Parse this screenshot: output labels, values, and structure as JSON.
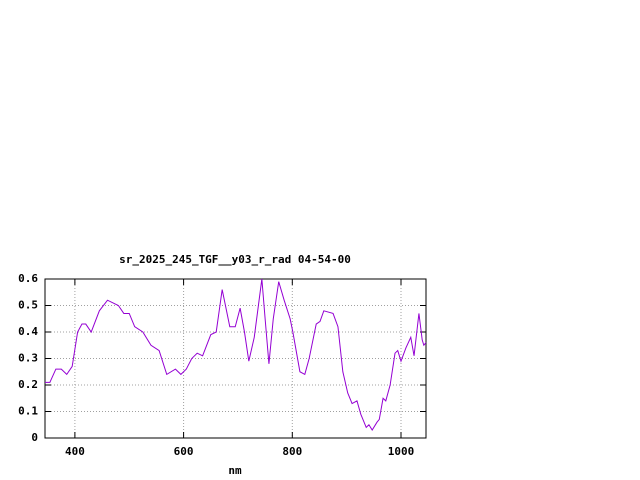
{
  "chart_data": {
    "type": "line",
    "title": "sr_2025_245_TGF__y03_r_rad 04-54-00",
    "x_label": "nm",
    "x": [
      345,
      354,
      365,
      375,
      385,
      395,
      405,
      413,
      420,
      430,
      445,
      460,
      480,
      490,
      500,
      510,
      525,
      540,
      555,
      569,
      585,
      595,
      605,
      615,
      625,
      635,
      650,
      660,
      671,
      677,
      685,
      695,
      704,
      712,
      720,
      730,
      744,
      750,
      757,
      765,
      775,
      785,
      796,
      801,
      814,
      823,
      831,
      844,
      851,
      858,
      875,
      884,
      893,
      902,
      910,
      919,
      926,
      936,
      941,
      947,
      956,
      960,
      967,
      972,
      980,
      989,
      994,
      1000,
      1009,
      1018,
      1024,
      1033,
      1039,
      1042,
      1046
    ],
    "series": [
      {
        "name": "sr_2025_245_TGF__y03_r_rad 04-54-00",
        "color": "#9400d3",
        "values": [
          0.21,
          0.21,
          0.26,
          0.26,
          0.24,
          0.27,
          0.4,
          0.43,
          0.43,
          0.4,
          0.48,
          0.52,
          0.5,
          0.47,
          0.47,
          0.42,
          0.4,
          0.35,
          0.33,
          0.24,
          0.26,
          0.24,
          0.26,
          0.3,
          0.32,
          0.31,
          0.39,
          0.4,
          0.56,
          0.5,
          0.42,
          0.42,
          0.49,
          0.4,
          0.29,
          0.38,
          0.6,
          0.45,
          0.28,
          0.45,
          0.59,
          0.52,
          0.45,
          0.4,
          0.25,
          0.24,
          0.3,
          0.43,
          0.44,
          0.48,
          0.47,
          0.42,
          0.25,
          0.17,
          0.13,
          0.14,
          0.09,
          0.04,
          0.05,
          0.03,
          0.06,
          0.07,
          0.15,
          0.14,
          0.2,
          0.32,
          0.33,
          0.29,
          0.34,
          0.38,
          0.31,
          0.47,
          0.37,
          0.35,
          0.36
        ]
      }
    ],
    "xlim": [
      345,
      1046
    ],
    "xticks": [
      400,
      600,
      800,
      1000
    ],
    "ylim": [
      0,
      0.6
    ],
    "yticks": [
      0,
      0.1,
      0.2,
      0.3,
      0.4,
      0.5,
      0.6
    ],
    "grid": true
  }
}
